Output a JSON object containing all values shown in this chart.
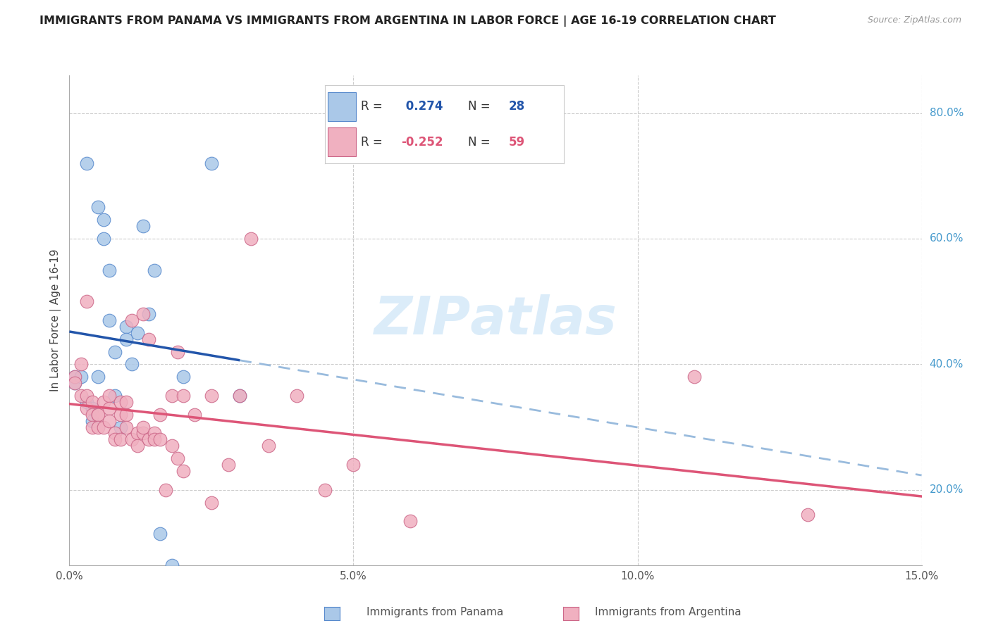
{
  "title": "IMMIGRANTS FROM PANAMA VS IMMIGRANTS FROM ARGENTINA IN LABOR FORCE | AGE 16-19 CORRELATION CHART",
  "source": "Source: ZipAtlas.com",
  "ylabel": "In Labor Force | Age 16-19",
  "xlim": [
    0.0,
    0.15
  ],
  "ylim": [
    0.08,
    0.86
  ],
  "yticks_right": [
    0.2,
    0.4,
    0.6,
    0.8
  ],
  "ytick_right_labels": [
    "20.0%",
    "40.0%",
    "60.0%",
    "80.0%"
  ],
  "xtick_positions": [
    0.0,
    0.05,
    0.1,
    0.15
  ],
  "xtick_labels": [
    "0.0%",
    "5.0%",
    "10.0%",
    "15.0%"
  ],
  "panama_R": "0.274",
  "panama_N": "28",
  "argentina_R": "-0.252",
  "argentina_N": "59",
  "panama_scatter_color": "#aac8e8",
  "panama_scatter_edge": "#5588cc",
  "argentina_scatter_color": "#f0b0c0",
  "argentina_scatter_edge": "#cc6688",
  "panama_line_color": "#2255aa",
  "argentina_line_color": "#dd5577",
  "dashed_line_color": "#99bbdd",
  "panama_x": [
    0.001,
    0.001,
    0.002,
    0.003,
    0.004,
    0.004,
    0.005,
    0.005,
    0.006,
    0.006,
    0.007,
    0.008,
    0.008,
    0.009,
    0.01,
    0.01,
    0.011,
    0.012,
    0.013,
    0.014,
    0.015,
    0.016,
    0.018,
    0.02,
    0.025,
    0.03,
    0.007,
    0.003
  ],
  "panama_y": [
    0.37,
    0.38,
    0.38,
    0.34,
    0.33,
    0.31,
    0.65,
    0.38,
    0.63,
    0.6,
    0.55,
    0.42,
    0.35,
    0.3,
    0.46,
    0.44,
    0.4,
    0.45,
    0.62,
    0.48,
    0.55,
    0.13,
    0.08,
    0.38,
    0.72,
    0.35,
    0.47,
    0.72
  ],
  "argentina_x": [
    0.001,
    0.001,
    0.002,
    0.002,
    0.003,
    0.003,
    0.003,
    0.004,
    0.004,
    0.004,
    0.005,
    0.005,
    0.005,
    0.006,
    0.006,
    0.007,
    0.007,
    0.007,
    0.008,
    0.008,
    0.009,
    0.009,
    0.009,
    0.01,
    0.01,
    0.01,
    0.011,
    0.011,
    0.012,
    0.012,
    0.013,
    0.013,
    0.013,
    0.014,
    0.014,
    0.015,
    0.015,
    0.016,
    0.016,
    0.017,
    0.018,
    0.018,
    0.019,
    0.019,
    0.02,
    0.02,
    0.022,
    0.025,
    0.025,
    0.028,
    0.03,
    0.032,
    0.035,
    0.04,
    0.045,
    0.05,
    0.06,
    0.11,
    0.13
  ],
  "argentina_y": [
    0.38,
    0.37,
    0.4,
    0.35,
    0.35,
    0.33,
    0.5,
    0.34,
    0.32,
    0.3,
    0.32,
    0.32,
    0.3,
    0.34,
    0.3,
    0.35,
    0.33,
    0.31,
    0.29,
    0.28,
    0.34,
    0.32,
    0.28,
    0.34,
    0.32,
    0.3,
    0.47,
    0.28,
    0.29,
    0.27,
    0.29,
    0.48,
    0.3,
    0.44,
    0.28,
    0.29,
    0.28,
    0.32,
    0.28,
    0.2,
    0.35,
    0.27,
    0.42,
    0.25,
    0.35,
    0.23,
    0.32,
    0.35,
    0.18,
    0.24,
    0.35,
    0.6,
    0.27,
    0.35,
    0.2,
    0.24,
    0.15,
    0.38,
    0.16
  ],
  "legend_panama_label": "R =  0.274   N = 28",
  "legend_argentina_label": "R = -0.252   N = 59",
  "bottom_legend_panama": "Immigrants from Panama",
  "bottom_legend_argentina": "Immigrants from Argentina"
}
